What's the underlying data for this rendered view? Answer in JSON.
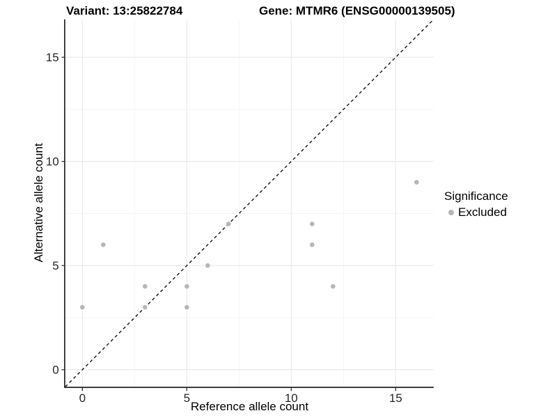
{
  "chart_data": {
    "type": "scatter",
    "title_left": "Variant: 13:25822784",
    "title_right": "Gene: MTMR6 (ENSG00000139505)",
    "xlabel": "Reference allele count",
    "ylabel": "Alternative allele count",
    "xlim": [
      -0.82,
      16.82
    ],
    "ylim": [
      -0.82,
      16.82
    ],
    "x_ticks": [
      0,
      5,
      10,
      15
    ],
    "y_ticks": [
      0,
      5,
      10,
      15
    ],
    "x_minor": [
      2.5,
      7.5,
      12.5
    ],
    "y_minor": [
      2.5,
      7.5,
      12.5
    ],
    "grid": true,
    "series": [
      {
        "name": "Excluded",
        "color": "#b7b7b7",
        "points": [
          [
            0,
            3
          ],
          [
            1,
            6
          ],
          [
            3,
            3
          ],
          [
            3,
            4
          ],
          [
            5,
            3
          ],
          [
            5,
            4
          ],
          [
            6,
            5
          ],
          [
            7,
            7
          ],
          [
            11,
            6
          ],
          [
            11,
            7
          ],
          [
            12,
            4
          ],
          [
            16,
            9
          ]
        ]
      }
    ],
    "reference_line": {
      "style": "dashed",
      "from": [
        -0.82,
        -0.82
      ],
      "to": [
        16.82,
        16.82
      ],
      "color": "#111111"
    },
    "legend": {
      "position": "right",
      "title": "Significance",
      "items": [
        {
          "label": "Excluded",
          "color": "#b7b7b7"
        }
      ]
    },
    "colors": {
      "grid_major": "#e8e8e8",
      "grid_minor": "#f3f3f3",
      "axis_line": "#222222",
      "tick_mark": "#333333",
      "tick_text": "#262626"
    }
  }
}
